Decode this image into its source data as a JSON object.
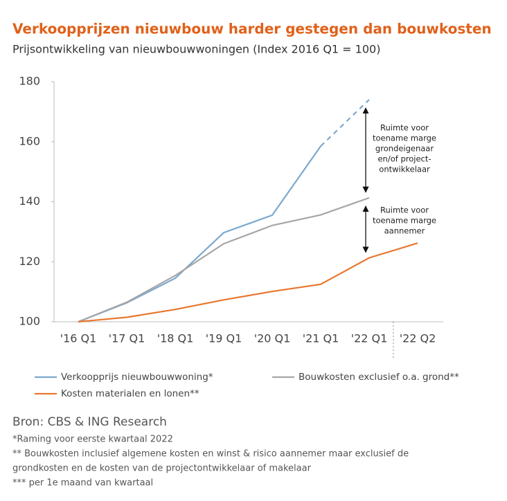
{
  "chart_data": {
    "type": "line",
    "title": "Verkoopprijzen nieuwbouw harder gestegen dan bouwkosten",
    "subtitle": "Prijsontwikkeling van nieuwbouwwoningen (Index 2016 Q1 = 100)",
    "categories": [
      "'16 Q1",
      "'17 Q1",
      "'18 Q1",
      "'19 Q1",
      "'20 Q1",
      "'21 Q1",
      "'22 Q1",
      "'22 Q2"
    ],
    "series": [
      {
        "name": "Verkoopprijs nieuwbouwwoning*",
        "color": "#7ba7cf",
        "dashed_from_index": 5,
        "values": [
          100,
          106.3,
          114.5,
          129.7,
          135.5,
          158.5,
          174,
          null
        ]
      },
      {
        "name": "Bouwkosten exclusief o.a. grond**",
        "color": "#a6a6a6",
        "values": [
          100,
          106.5,
          115.4,
          126,
          132.1,
          135.6,
          141.3,
          null
        ]
      },
      {
        "name": "Kosten materialen en lonen**",
        "color": "#e8772e",
        "values": [
          100,
          101.5,
          104.1,
          107.3,
          110.1,
          112.5,
          121.3,
          126.2
        ]
      }
    ],
    "ylim": [
      100,
      180
    ],
    "yticks": [
      100,
      120,
      140,
      160,
      180
    ],
    "grid": false,
    "annotations": [
      {
        "text": [
          "Ruimte voor",
          "toename marge",
          "grondeigenaar",
          "en/of project-",
          "ontwikkelaar"
        ]
      },
      {
        "text": [
          "Ruimte voor",
          "toename marge",
          "aannemer"
        ]
      }
    ],
    "source": "Bron: CBS & ING Research",
    "notes": [
      "*Raming voor eerste kwartaal 2022",
      "** Bouwkosten inclusief algemene kosten en winst & risico aannemer maar exclusief de",
      "grondkosten  en de kosten van de projectontwikkelaar  of makelaar",
      "*** per 1e maand van kwartaal"
    ]
  }
}
